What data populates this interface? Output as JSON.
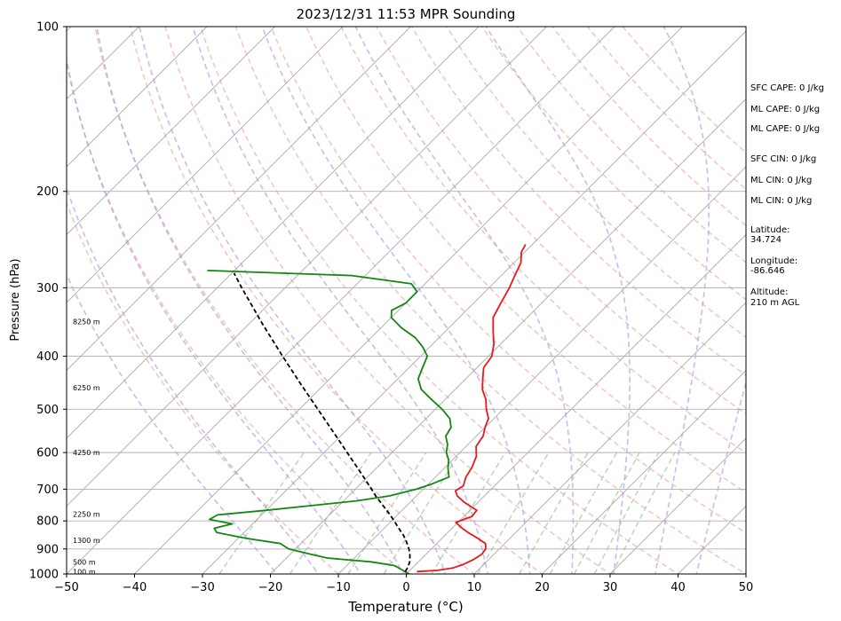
{
  "chart_data": {
    "type": "line",
    "subtype": "skew-t log-p sounding",
    "title": "2023/12/31 11:53 MPR Sounding",
    "xlabel": "Temperature (°C)",
    "ylabel": "Pressure (hPa)",
    "xlim": [
      -50,
      50
    ],
    "ylim": [
      1000,
      100
    ],
    "y_scale": "log",
    "x_ticks": [
      -50,
      -40,
      -30,
      -20,
      -10,
      0,
      10,
      20,
      30,
      40,
      50
    ],
    "y_ticks": [
      1000,
      900,
      800,
      700,
      600,
      500,
      400,
      300,
      200,
      100
    ],
    "grid": true,
    "colors": {
      "temperature": "#e8191a",
      "dewpoint": "#138613",
      "parcel": "#000000",
      "dry_adiabats": "#f4a3a3",
      "moist_adiabats": "#9f8ff0",
      "mixing_ratio": "#8cc98c",
      "isotherms": "#aaaaaa"
    },
    "series": [
      {
        "key": "temperature",
        "points": [
          [
            990,
            1.2
          ],
          [
            985,
            4.0
          ],
          [
            975,
            6.0
          ],
          [
            960,
            7.0
          ],
          [
            940,
            7.8
          ],
          [
            920,
            8.2
          ],
          [
            900,
            8.0
          ],
          [
            880,
            7.2
          ],
          [
            860,
            5.2
          ],
          [
            840,
            3.0
          ],
          [
            825,
            1.5
          ],
          [
            805,
            -0.3
          ],
          [
            785,
            1.2
          ],
          [
            765,
            1.0
          ],
          [
            740,
            -2.0
          ],
          [
            720,
            -4.0
          ],
          [
            705,
            -5.0
          ],
          [
            690,
            -4.6
          ],
          [
            665,
            -5.5
          ],
          [
            640,
            -6.0
          ],
          [
            610,
            -7.0
          ],
          [
            585,
            -8.5
          ],
          [
            560,
            -9.0
          ],
          [
            540,
            -10.0
          ],
          [
            520,
            -10.8
          ],
          [
            500,
            -12.5
          ],
          [
            480,
            -14.0
          ],
          [
            460,
            -16.0
          ],
          [
            440,
            -17.5
          ],
          [
            420,
            -19.0
          ],
          [
            400,
            -19.5
          ],
          [
            380,
            -21.0
          ],
          [
            360,
            -23.0
          ],
          [
            340,
            -25.0
          ],
          [
            320,
            -26.0
          ],
          [
            300,
            -27.0
          ],
          [
            285,
            -28.0
          ],
          [
            270,
            -29.0
          ],
          [
            258,
            -30.5
          ],
          [
            250,
            -31.0
          ]
        ]
      },
      {
        "key": "dewpoint",
        "points": [
          [
            1000,
            0.4
          ],
          [
            985,
            -1.0
          ],
          [
            965,
            -3.0
          ],
          [
            950,
            -7.0
          ],
          [
            935,
            -14.0
          ],
          [
            920,
            -17.0
          ],
          [
            900,
            -21.0
          ],
          [
            880,
            -23.0
          ],
          [
            860,
            -29.0
          ],
          [
            840,
            -34.0
          ],
          [
            825,
            -35.0
          ],
          [
            810,
            -33.0
          ],
          [
            795,
            -37.0
          ],
          [
            780,
            -36.5
          ],
          [
            765,
            -30.0
          ],
          [
            750,
            -24.0
          ],
          [
            735,
            -18.0
          ],
          [
            720,
            -14.0
          ],
          [
            700,
            -11.0
          ],
          [
            685,
            -9.5
          ],
          [
            665,
            -8.0
          ],
          [
            640,
            -9.5
          ],
          [
            620,
            -10.5
          ],
          [
            600,
            -12.0
          ],
          [
            580,
            -13.0
          ],
          [
            560,
            -14.5
          ],
          [
            540,
            -15.0
          ],
          [
            520,
            -16.5
          ],
          [
            500,
            -19.0
          ],
          [
            480,
            -22.0
          ],
          [
            460,
            -25.0
          ],
          [
            440,
            -27.0
          ],
          [
            420,
            -28.0
          ],
          [
            400,
            -29.0
          ],
          [
            385,
            -31.0
          ],
          [
            370,
            -33.5
          ],
          [
            355,
            -37.0
          ],
          [
            340,
            -40.0
          ],
          [
            330,
            -41.0
          ],
          [
            320,
            -40.0
          ],
          [
            305,
            -40.0
          ],
          [
            295,
            -42.0
          ],
          [
            285,
            -52.0
          ],
          [
            279,
            -74.0
          ]
        ]
      },
      {
        "key": "parcel",
        "points": [
          [
            990,
            -0.5
          ],
          [
            970,
            -0.8
          ],
          [
            950,
            -1.3
          ],
          [
            925,
            -2.2
          ],
          [
            900,
            -3.3
          ],
          [
            870,
            -4.9
          ],
          [
            850,
            -6.1
          ],
          [
            820,
            -8.2
          ],
          [
            800,
            -9.6
          ],
          [
            780,
            -11.1
          ],
          [
            750,
            -13.5
          ],
          [
            720,
            -16.0
          ],
          [
            700,
            -17.6
          ],
          [
            650,
            -21.9
          ],
          [
            600,
            -26.6
          ],
          [
            550,
            -31.7
          ],
          [
            500,
            -37.3
          ],
          [
            450,
            -43.5
          ],
          [
            400,
            -50.3
          ],
          [
            350,
            -57.9
          ],
          [
            300,
            -66.4
          ],
          [
            282,
            -69.7
          ]
        ]
      }
    ],
    "height_labels": [
      {
        "text": "100 m",
        "p": 990
      },
      {
        "text": "500 m",
        "p": 950
      },
      {
        "text": "1300 m",
        "p": 868
      },
      {
        "text": "2250 m",
        "p": 778
      },
      {
        "text": "4250 m",
        "p": 600
      },
      {
        "text": "6250 m",
        "p": 457
      },
      {
        "text": "8250 m",
        "p": 346
      }
    ]
  },
  "indices": [
    {
      "label": "SFC CAPE: 0 J/kg"
    },
    {
      "label": "ML CAPE: 0 J/kg"
    },
    {
      "label": "ML CAPE: 0 J/kg"
    },
    {
      "label": "SFC CIN: 0 J/kg"
    },
    {
      "label": "ML CIN: 0 J/kg"
    },
    {
      "label": "ML CIN: 0 J/kg"
    }
  ],
  "location": {
    "latitude_label": "Latitude:",
    "latitude_value": "34.724",
    "longitude_label": "Longitude:",
    "longitude_value": "-86.646",
    "altitude_label": "Altitude:",
    "altitude_value": "210 m AGL"
  }
}
